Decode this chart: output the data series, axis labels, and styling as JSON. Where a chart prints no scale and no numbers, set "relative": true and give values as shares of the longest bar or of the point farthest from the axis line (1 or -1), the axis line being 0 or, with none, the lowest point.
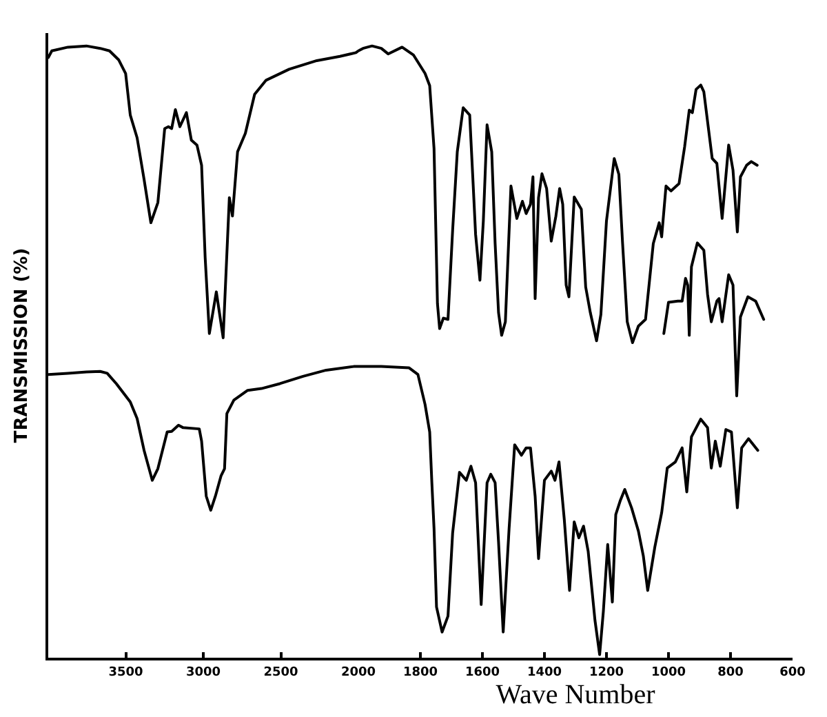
{
  "chart_data": [
    {
      "type": "line",
      "ylabel": "TRANSMISSION (%)",
      "relative": true,
      "xlim": [
        4000,
        2000
      ],
      "xticks": [
        3500,
        3000,
        2500,
        2000
      ],
      "tick_labels": "x",
      "line_style": "solid",
      "series": [
        {
          "color": "#000000",
          "x": [
            4000,
            3977,
            3873,
            3754,
            3665,
            3605,
            3545,
            3501,
            3471,
            3427,
            3382,
            3338,
            3293,
            3249,
            3225,
            3204,
            3180,
            3151,
            3109,
            3077,
            3041,
            3011,
            2988,
            2961,
            2916,
            2872,
            2832,
            2812,
            2779,
            2729,
            2669,
            2595,
            2446,
            2268,
            2119,
            2016,
            2000
          ],
          "values": [
            0.981,
            0.992,
            0.998,
            1.0,
            0.996,
            0.992,
            0.977,
            0.955,
            0.887,
            0.85,
            0.782,
            0.711,
            0.744,
            0.865,
            0.868,
            0.865,
            0.896,
            0.868,
            0.891,
            0.846,
            0.838,
            0.805,
            0.654,
            0.53,
            0.598,
            0.523,
            0.752,
            0.722,
            0.827,
            0.857,
            0.921,
            0.944,
            0.962,
            0.976,
            0.983,
            0.989,
            0.992
          ]
        },
        {
          "color": "#000000",
          "x": [
            4000,
            3873,
            3754,
            3665,
            3620,
            3561,
            3471,
            3427,
            3382,
            3329,
            3293,
            3233,
            3204,
            3160,
            3130,
            3026,
            3011,
            2981,
            2952,
            2922,
            2886,
            2863,
            2848,
            2803,
            2714,
            2625,
            2506,
            2357,
            2208,
            2030,
            2000
          ],
          "values": [
            0.463,
            0.465,
            0.467,
            0.468,
            0.465,
            0.448,
            0.418,
            0.391,
            0.339,
            0.29,
            0.309,
            0.369,
            0.37,
            0.38,
            0.376,
            0.374,
            0.354,
            0.264,
            0.241,
            0.264,
            0.297,
            0.309,
            0.399,
            0.421,
            0.437,
            0.44,
            0.448,
            0.46,
            0.47,
            0.476,
            0.476
          ]
        }
      ]
    },
    {
      "type": "line",
      "xlabel": "Wave Number",
      "relative": true,
      "xlim": [
        2000,
        600
      ],
      "xticks": [
        1800,
        1600,
        1400,
        1200,
        1000,
        800,
        600
      ],
      "tick_labels": "x",
      "line_style": "solid",
      "series": [
        {
          "color": "#000000",
          "x": [
            2000,
            1985,
            1956,
            1926,
            1904,
            1859,
            1822,
            1785,
            1770,
            1756,
            1745,
            1738,
            1726,
            1711,
            1696,
            1681,
            1662,
            1641,
            1630,
            1622,
            1608,
            1597,
            1585,
            1570,
            1559,
            1548,
            1538,
            1526,
            1508,
            1489,
            1471,
            1459,
            1445,
            1437,
            1430,
            1419,
            1408,
            1393,
            1378,
            1363,
            1351,
            1341,
            1330,
            1321,
            1304,
            1281,
            1267,
            1252,
            1232,
            1218,
            1200,
            1175,
            1160,
            1148,
            1133,
            1116,
            1097,
            1074,
            1049,
            1030,
            1022,
            1008,
            992,
            966,
            948,
            933,
            923,
            911,
            896,
            886,
            859,
            844,
            827,
            806,
            792,
            778,
            768,
            748,
            733,
            714
          ],
          "values": [
            0.992,
            0.996,
            1.0,
            0.996,
            0.987,
            0.998,
            0.985,
            0.955,
            0.935,
            0.832,
            0.579,
            0.538,
            0.555,
            0.553,
            0.699,
            0.827,
            0.899,
            0.887,
            0.775,
            0.692,
            0.617,
            0.714,
            0.871,
            0.827,
            0.677,
            0.564,
            0.527,
            0.549,
            0.771,
            0.718,
            0.746,
            0.726,
            0.741,
            0.786,
            0.587,
            0.752,
            0.791,
            0.767,
            0.681,
            0.722,
            0.767,
            0.741,
            0.609,
            0.59,
            0.753,
            0.733,
            0.606,
            0.564,
            0.518,
            0.561,
            0.714,
            0.816,
            0.79,
            0.677,
            0.549,
            0.515,
            0.542,
            0.553,
            0.677,
            0.711,
            0.688,
            0.771,
            0.763,
            0.775,
            0.835,
            0.895,
            0.891,
            0.929,
            0.936,
            0.925,
            0.816,
            0.808,
            0.718,
            0.838,
            0.797,
            0.696,
            0.786,
            0.805,
            0.811,
            0.805
          ]
        },
        {
          "color": "#000000",
          "x": [
            1015,
            1000,
            970,
            956,
            945,
            938,
            933,
            926,
            907,
            886,
            874,
            862,
            844,
            837,
            827,
            806,
            792,
            780,
            768,
            744,
            719,
            693
          ],
          "values": [
            0.53,
            0.581,
            0.583,
            0.583,
            0.62,
            0.609,
            0.527,
            0.639,
            0.678,
            0.666,
            0.594,
            0.549,
            0.583,
            0.587,
            0.549,
            0.626,
            0.609,
            0.428,
            0.557,
            0.59,
            0.583,
            0.553
          ]
        },
        {
          "color": "#000000",
          "x": [
            2000,
            1926,
            1837,
            1808,
            1785,
            1770,
            1763,
            1756,
            1748,
            1730,
            1711,
            1696,
            1674,
            1652,
            1637,
            1622,
            1604,
            1585,
            1573,
            1559,
            1548,
            1533,
            1514,
            1496,
            1474,
            1459,
            1445,
            1430,
            1419,
            1400,
            1378,
            1366,
            1353,
            1336,
            1319,
            1304,
            1289,
            1274,
            1259,
            1237,
            1222,
            1210,
            1196,
            1181,
            1170,
            1156,
            1141,
            1119,
            1097,
            1081,
            1067,
            1044,
            1022,
            1004,
            978,
            956,
            941,
            926,
            896,
            874,
            862,
            849,
            833,
            815,
            797,
            778,
            764,
            742,
            712
          ],
          "values": [
            0.476,
            0.476,
            0.474,
            0.463,
            0.414,
            0.369,
            0.286,
            0.211,
            0.083,
            0.042,
            0.068,
            0.204,
            0.303,
            0.29,
            0.313,
            0.286,
            0.087,
            0.286,
            0.3,
            0.286,
            0.189,
            0.042,
            0.211,
            0.348,
            0.331,
            0.343,
            0.343,
            0.264,
            0.162,
            0.29,
            0.305,
            0.29,
            0.32,
            0.226,
            0.11,
            0.222,
            0.196,
            0.215,
            0.174,
            0.061,
            0.005,
            0.076,
            0.185,
            0.091,
            0.234,
            0.256,
            0.275,
            0.245,
            0.207,
            0.166,
            0.11,
            0.181,
            0.237,
            0.31,
            0.32,
            0.343,
            0.271,
            0.361,
            0.39,
            0.376,
            0.31,
            0.354,
            0.313,
            0.373,
            0.369,
            0.245,
            0.343,
            0.358,
            0.339
          ]
        }
      ]
    }
  ]
}
